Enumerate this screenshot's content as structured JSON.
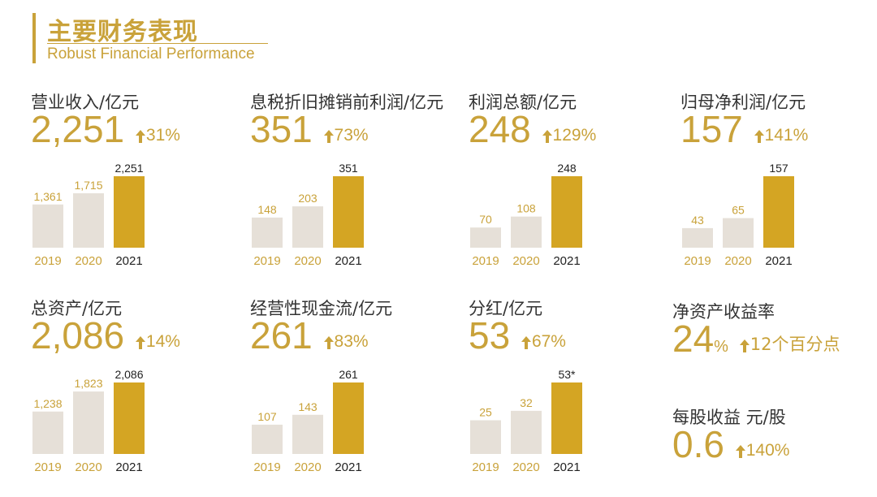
{
  "header": {
    "title_cn": "主要财务表现",
    "title_en": "Robust Financial Performance"
  },
  "colors": {
    "gold": "#c9a23a",
    "bar_prior": "#e6e0d8",
    "bar_current": "#d4a523",
    "text": "#333333"
  },
  "metrics": [
    {
      "label": "营业收入/亿元",
      "value": "2,251",
      "growth": "31%"
    },
    {
      "label": "息税折旧摊销前利润/亿元",
      "value": "351",
      "growth": "73%"
    },
    {
      "label": "利润总额/亿元",
      "value": "248",
      "growth": "129%"
    },
    {
      "label": "归母净利润/亿元",
      "value": "157",
      "growth": "141%"
    },
    {
      "label": "总资产/亿元",
      "value": "2,086",
      "growth": "14%"
    },
    {
      "label": "经营性现金流/亿元",
      "value": "261",
      "growth": "83%"
    },
    {
      "label": "分红/亿元",
      "value": "53",
      "growth": "67%"
    },
    {
      "label": "净资产收益率",
      "value": "24",
      "value_suffix": "%",
      "growth": "12个百分点"
    },
    {
      "label": "每股收益 元/股",
      "value": "0.6",
      "growth": "140%"
    }
  ],
  "chart_data": [
    {
      "type": "bar",
      "title": "营业收入/亿元",
      "categories": [
        "2019",
        "2020",
        "2021"
      ],
      "values": [
        1361,
        1715,
        2251
      ],
      "value_labels": [
        "1,361",
        "1,715",
        "2,251"
      ]
    },
    {
      "type": "bar",
      "title": "息税折旧摊销前利润/亿元",
      "categories": [
        "2019",
        "2020",
        "2021"
      ],
      "values": [
        148,
        203,
        351
      ],
      "value_labels": [
        "148",
        "203",
        "351"
      ]
    },
    {
      "type": "bar",
      "title": "利润总额/亿元",
      "categories": [
        "2019",
        "2020",
        "2021"
      ],
      "values": [
        70,
        108,
        248
      ],
      "value_labels": [
        "70",
        "108",
        "248"
      ]
    },
    {
      "type": "bar",
      "title": "归母净利润/亿元",
      "categories": [
        "2019",
        "2020",
        "2021"
      ],
      "values": [
        43,
        65,
        157
      ],
      "value_labels": [
        "43",
        "65",
        "157"
      ]
    },
    {
      "type": "bar",
      "title": "总资产/亿元",
      "categories": [
        "2019",
        "2020",
        "2021"
      ],
      "values": [
        1238,
        1823,
        2086
      ],
      "value_labels": [
        "1,238",
        "1,823",
        "2,086"
      ]
    },
    {
      "type": "bar",
      "title": "经营性现金流/亿元",
      "categories": [
        "2019",
        "2020",
        "2021"
      ],
      "values": [
        107,
        143,
        261
      ],
      "value_labels": [
        "107",
        "143",
        "261"
      ]
    },
    {
      "type": "bar",
      "title": "分红/亿元",
      "categories": [
        "2019",
        "2020",
        "2021"
      ],
      "values": [
        25,
        32,
        53
      ],
      "value_labels": [
        "25",
        "32",
        "53*"
      ]
    }
  ]
}
